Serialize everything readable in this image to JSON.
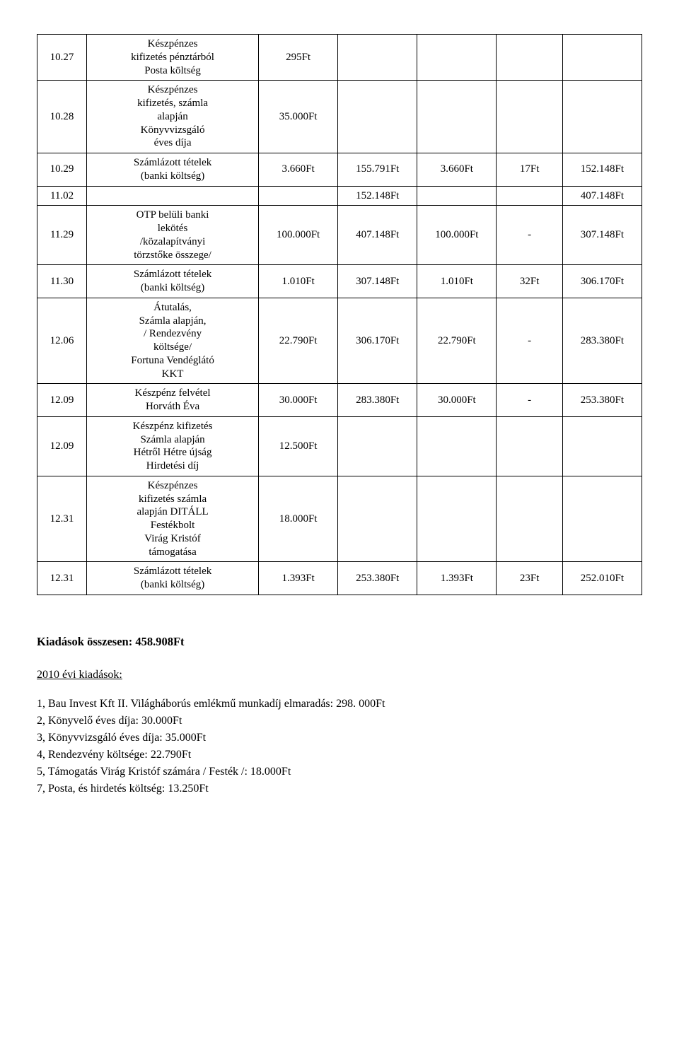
{
  "table": {
    "col_widths": [
      "7.5%",
      "26%",
      "12%",
      "12%",
      "12%",
      "10%",
      "12%"
    ],
    "rows": [
      {
        "c": [
          "10.27",
          "Készpénzes kifizetés pénztárból Posta költség",
          "295Ft",
          "",
          "",
          "",
          ""
        ]
      },
      {
        "c": [
          "10.28",
          "Készpénzes kifizetés, számla alapján Könyvvizsgáló éves díja",
          "35.000Ft",
          "",
          "",
          "",
          ""
        ]
      },
      {
        "c": [
          "10.29",
          "Számlázott tételek (banki költség)",
          "3.660Ft",
          "155.791Ft",
          "3.660Ft",
          "17Ft",
          "152.148Ft"
        ]
      },
      {
        "c": [
          "11.02",
          "",
          "",
          "152.148Ft",
          "",
          "",
          "407.148Ft"
        ]
      },
      {
        "c": [
          "11.29",
          "OTP belüli banki lekötés /közalapítványi törzstőke összege/",
          "100.000Ft",
          "407.148Ft",
          "100.000Ft",
          "-",
          "307.148Ft"
        ]
      },
      {
        "c": [
          "11.30",
          "Számlázott tételek (banki költség)",
          "1.010Ft",
          "307.148Ft",
          "1.010Ft",
          "32Ft",
          "306.170Ft"
        ]
      },
      {
        "c": [
          "12.06",
          "Átutalás, Számla alapján, / Rendezvény költsége/ Fortuna Vendéglátó KKT",
          "22.790Ft",
          "306.170Ft",
          "22.790Ft",
          "-",
          "283.380Ft"
        ]
      },
      {
        "c": [
          "12.09",
          "Készpénz felvétel Horváth Éva",
          "30.000Ft",
          "283.380Ft",
          "30.000Ft",
          "-",
          "253.380Ft"
        ]
      },
      {
        "c": [
          "12.09",
          "Készpénz kifizetés Számla alapján Hétről Hétre újság Hirdetési díj",
          "12.500Ft",
          "",
          "",
          "",
          ""
        ]
      },
      {
        "c": [
          "12.31",
          "Készpénzes kifizetés számla alapján DITÁLL Festékbolt Virág Kristóf támogatása",
          "18.000Ft",
          "",
          "",
          "",
          ""
        ]
      },
      {
        "c": [
          "12.31",
          "Számlázott tételek (banki költség)",
          "1.393Ft",
          "253.380Ft",
          "1.393Ft",
          "23Ft",
          "252.010Ft"
        ]
      }
    ]
  },
  "totals_heading": "Kiadások összesen: 458.908Ft",
  "year_heading": "2010 évi kiadások:",
  "list_items": [
    "1, Bau Invest Kft II. Világháborús emlékmű munkadíj elmaradás: 298. 000Ft",
    "2, Könyvelő éves díja: 30.000Ft",
    "3, Könyvvizsgáló éves díja: 35.000Ft",
    "4, Rendezvény költsége: 22.790Ft",
    "5, Támogatás Virág Kristóf számára / Festék /: 18.000Ft",
    "7, Posta, és hirdetés költség: 13.250Ft"
  ]
}
